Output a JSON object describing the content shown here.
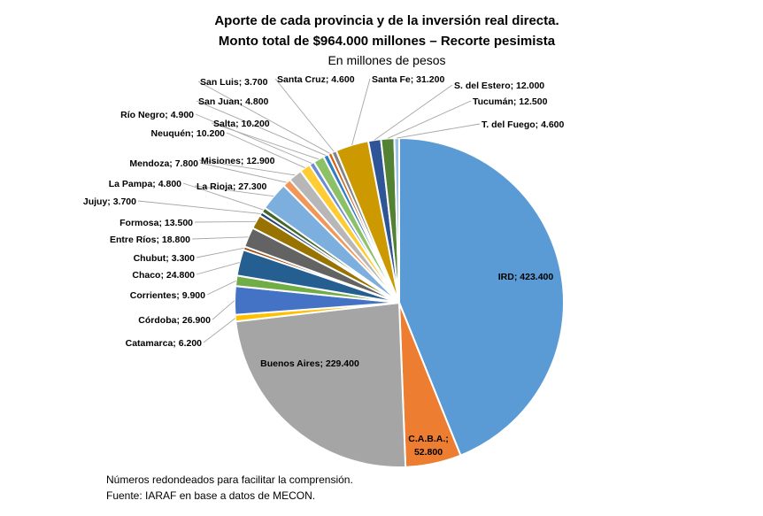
{
  "chart_data": {
    "type": "pie",
    "title": [
      "Aporte de cada provincia y de la inversión real directa.",
      "Monto total de $964.000 millones – Recorte pesimista"
    ],
    "subtitle": "En millones de pesos",
    "slices": [
      {
        "name": "IRD",
        "value": 423400,
        "label": "IRD; 423.400",
        "color": "#5b9bd5"
      },
      {
        "name": "C.A.B.A.",
        "value": 52800,
        "label": "C.A.B.A.; 52.800",
        "color": "#ed7d31"
      },
      {
        "name": "Buenos Aires",
        "value": 229400,
        "label": "Buenos Aires; 229.400",
        "color": "#a5a5a5"
      },
      {
        "name": "Catamarca",
        "value": 6200,
        "label": "Catamarca; 6.200",
        "color": "#ffc000"
      },
      {
        "name": "Córdoba",
        "value": 26900,
        "label": "Córdoba; 26.900",
        "color": "#4472c4"
      },
      {
        "name": "Corrientes",
        "value": 9900,
        "label": "Corrientes; 9.900",
        "color": "#70ad47"
      },
      {
        "name": "Chaco",
        "value": 24800,
        "label": "Chaco; 24.800",
        "color": "#255e91"
      },
      {
        "name": "Chubut",
        "value": 3300,
        "label": "Chubut; 3.300",
        "color": "#9e480e"
      },
      {
        "name": "Entre Ríos",
        "value": 18800,
        "label": "Entre Ríos; 18.800",
        "color": "#636363"
      },
      {
        "name": "Formosa",
        "value": 13500,
        "label": "Formosa; 13.500",
        "color": "#997300"
      },
      {
        "name": "Jujuy",
        "value": 3700,
        "label": "Jujuy; 3.700",
        "color": "#264478"
      },
      {
        "name": "La Pampa",
        "value": 4800,
        "label": "La Pampa; 4.800",
        "color": "#43682b"
      },
      {
        "name": "La Rioja",
        "value": 27300,
        "label": "La Rioja; 27.300",
        "color": "#7cafdd"
      },
      {
        "name": "Mendoza",
        "value": 7800,
        "label": "Mendoza; 7.800",
        "color": "#f1975a"
      },
      {
        "name": "Misiones",
        "value": 12900,
        "label": "Misiones; 12.900",
        "color": "#b7b7b7"
      },
      {
        "name": "Neuquén",
        "value": 10200,
        "label": "Neuquén; 10.200",
        "color": "#ffcd33"
      },
      {
        "name": "Río Negro",
        "value": 4900,
        "label": "Río Negro; 4.900",
        "color": "#698ed0"
      },
      {
        "name": "Salta",
        "value": 10200,
        "label": "Salta; 10.200",
        "color": "#8cc168"
      },
      {
        "name": "San Juan",
        "value": 4800,
        "label": "San Juan; 4.800",
        "color": "#327dc2"
      },
      {
        "name": "San Luis",
        "value": 3700,
        "label": "San Luis; 3.700",
        "color": "#d26012"
      },
      {
        "name": "Santa Cruz",
        "value": 4600,
        "label": "Santa Cruz; 4.600",
        "color": "#848484"
      },
      {
        "name": "Santa Fe",
        "value": 31200,
        "label": "Santa Fe; 31.200",
        "color": "#cc9a00"
      },
      {
        "name": "S. del Estero",
        "value": 12000,
        "label": "S. del Estero; 12.000",
        "color": "#2f5597"
      },
      {
        "name": "Tucumán",
        "value": 12500,
        "label": "Tucumán; 12.500",
        "color": "#548235"
      },
      {
        "name": "T. del Fuego",
        "value": 4600,
        "label": "T. del Fuego; 4.600",
        "color": "#9dc3e6"
      }
    ]
  },
  "notes": {
    "line1": "Números redondeados para facilitar la comprensión.",
    "line2": "Fuente: IARAF en base a datos de MECON."
  }
}
